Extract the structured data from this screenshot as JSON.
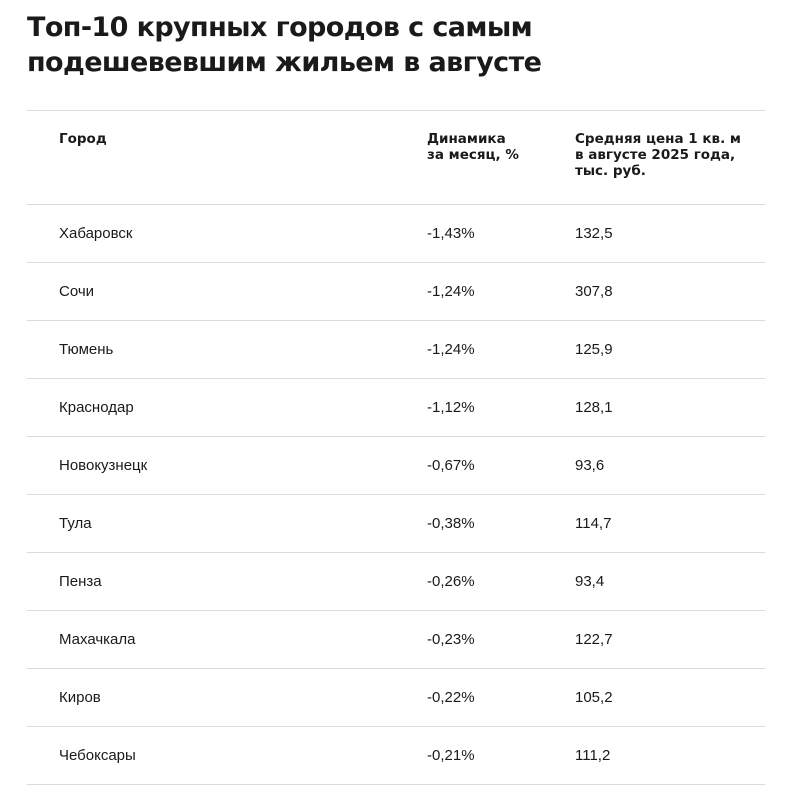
{
  "title": "Топ-10 крупных городов с самым подешевевшим жильем в августе",
  "table": {
    "headers": [
      "Город",
      "Динамика за месяц, %",
      "Средняя цена 1 кв. м в августе 2025 года, тыс. руб."
    ],
    "rows": [
      {
        "city": "Хабаровск",
        "change": "-1,43%",
        "price": "132,5"
      },
      {
        "city": "Сочи",
        "change": "-1,24%",
        "price": "307,8"
      },
      {
        "city": "Тюмень",
        "change": "-1,24%",
        "price": "125,9"
      },
      {
        "city": "Краснодар",
        "change": "-1,12%",
        "price": "128,1"
      },
      {
        "city": "Новокузнецк",
        "change": "-0,67%",
        "price": "93,6"
      },
      {
        "city": "Тула",
        "change": "-0,38%",
        "price": "114,7"
      },
      {
        "city": "Пенза",
        "change": "-0,26%",
        "price": "93,4"
      },
      {
        "city": "Махачкала",
        "change": "-0,23%",
        "price": "122,7"
      },
      {
        "city": "Киров",
        "change": "-0,22%",
        "price": "105,2"
      },
      {
        "city": "Чебоксары",
        "change": "-0,21%",
        "price": "111,2"
      }
    ]
  }
}
